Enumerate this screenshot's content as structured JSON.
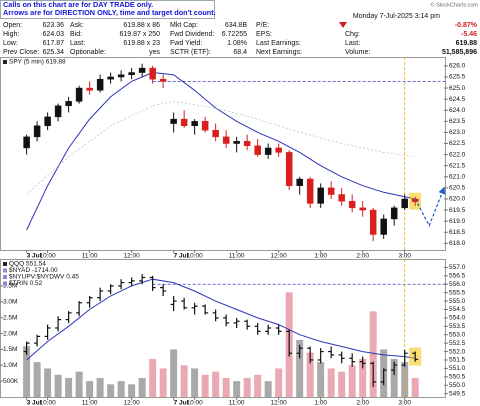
{
  "annotation": [
    "Calls on this chart are for DAY TRADE only.",
    "Arrows are for DIRECTION ONLY, time and target don't count."
  ],
  "quote": {
    "timestamp": "Monday 7-Jul-2025 3:14 pm",
    "credit": "© StockCharts.com",
    "change_pct": "-0.87%",
    "columns": [
      [
        [
          "Open:",
          623.36
        ],
        [
          "High:",
          624.03
        ],
        [
          "Low:",
          617.87
        ],
        [
          "Prev Close:",
          625.34
        ]
      ],
      [
        [
          "Ask:",
          "619.88 x 86"
        ],
        [
          "Bid:",
          "619.87 x 250"
        ],
        [
          "Last:",
          "619.88 x 23"
        ],
        [
          "Optionable:",
          "yes"
        ]
      ],
      [
        [
          "Mkt Cap:",
          "634.8B"
        ],
        [
          "Fwd Dividend:",
          6.72255
        ],
        [
          "Fwd Yield:",
          "1.08%"
        ],
        [
          "SCTR (ETF):",
          68.4
        ]
      ],
      [
        [
          "P/E:"
        ],
        [
          "EPS:"
        ],
        [
          "Last Earnings:"
        ],
        [
          "Next Earnings:"
        ]
      ],
      [
        [
          "Chg:",
          -5.46
        ],
        [
          "Last:",
          619.88
        ],
        [
          "Volume:",
          "51,585,896"
        ]
      ]
    ]
  },
  "chart_data": [
    {
      "type": "candlestick",
      "legend": "SPY (5 min) 619.88",
      "x": [
        0,
        15,
        30,
        45,
        60,
        75,
        90,
        105,
        120,
        135,
        150,
        165,
        180,
        195,
        210,
        225,
        240,
        255,
        270,
        285,
        300,
        315,
        330,
        345,
        360,
        375,
        390,
        405,
        420,
        435,
        450,
        465,
        480,
        495,
        510,
        525,
        540,
        555
      ],
      "open": [
        622.3,
        622.8,
        623.3,
        623.7,
        624.2,
        624.4,
        625.0,
        624.9,
        625.4,
        625.5,
        625.6,
        625.7,
        625.9,
        625.4,
        623.4,
        623.6,
        623.3,
        623.5,
        623.1,
        622.8,
        622.5,
        622.6,
        622.4,
        622.0,
        622.3,
        622.1,
        620.6,
        620.9,
        619.8,
        620.5,
        620.2,
        619.9,
        619.6,
        619.5,
        618.4,
        619.1,
        619.6,
        620.0
      ],
      "high": [
        622.9,
        623.5,
        623.9,
        624.3,
        624.6,
        625.1,
        625.3,
        625.6,
        625.7,
        625.8,
        625.9,
        626.1,
        626.0,
        625.6,
        623.9,
        624.0,
        623.6,
        623.7,
        623.4,
        623.1,
        622.8,
        622.9,
        622.7,
        622.5,
        622.5,
        622.2,
        621.0,
        621.0,
        620.7,
        620.8,
        620.5,
        620.2,
        619.9,
        619.6,
        619.3,
        619.7,
        620.2,
        620.1
      ],
      "low": [
        622.0,
        622.6,
        623.1,
        623.5,
        623.9,
        624.3,
        624.7,
        624.8,
        625.2,
        625.3,
        625.4,
        625.5,
        625.2,
        625.0,
        623.0,
        623.2,
        622.9,
        623.0,
        622.6,
        622.3,
        622.1,
        622.2,
        621.9,
        621.8,
        621.9,
        620.4,
        620.2,
        619.6,
        619.6,
        620.0,
        619.7,
        619.4,
        619.2,
        618.1,
        618.2,
        618.8,
        619.5,
        619.7
      ],
      "close": [
        622.8,
        623.3,
        623.7,
        624.2,
        624.4,
        625.0,
        624.9,
        625.4,
        625.5,
        625.6,
        625.7,
        625.9,
        625.4,
        625.3,
        623.6,
        623.3,
        623.5,
        623.1,
        622.8,
        622.5,
        622.6,
        622.4,
        622.0,
        622.3,
        622.1,
        620.6,
        620.9,
        619.8,
        620.5,
        620.2,
        619.9,
        619.6,
        619.5,
        618.4,
        619.1,
        619.6,
        620.0,
        619.88
      ],
      "up_color": "#111111",
      "down_color": "#d81e1e",
      "highlight_color": "#f2c200",
      "xlim": [
        -38,
        599
      ],
      "xticks": [
        {
          "value": 0,
          "label": "3 Jul"
        },
        {
          "value": 30,
          "label": "10:00"
        },
        {
          "value": 90,
          "label": "11:00"
        },
        {
          "value": 150,
          "label": "12:00"
        },
        {
          "value": 210,
          "label": "7 Jul"
        },
        {
          "value": 240,
          "label": "10:00"
        },
        {
          "value": 300,
          "label": "11:00"
        },
        {
          "value": 360,
          "label": "12:00"
        },
        {
          "value": 420,
          "label": "1:00"
        },
        {
          "value": 480,
          "label": "2:00"
        },
        {
          "value": 540,
          "label": "3:00"
        }
      ],
      "ylim": [
        617.7,
        626.4
      ],
      "yticks": [
        {
          "value": 626,
          "label": "626.0"
        },
        625.5,
        {
          "value": 625,
          "label": "625.0"
        },
        624.5,
        {
          "value": 624,
          "label": "624.0"
        },
        623.5,
        {
          "value": 623,
          "label": "623.0"
        },
        622.5,
        {
          "value": 622,
          "label": "622.0"
        },
        621.5,
        {
          "value": 621,
          "label": "621.0"
        },
        620.5,
        {
          "value": 620,
          "label": "620.0"
        },
        619.5,
        {
          "value": 619,
          "label": "619.0"
        },
        618.5,
        {
          "value": 618,
          "label": "618.0"
        }
      ],
      "overlays": [
        {
          "color": "#2a35b8",
          "dash": false,
          "x": [
            0,
            30,
            60,
            90,
            120,
            150,
            180,
            210,
            240,
            270,
            300,
            330,
            360,
            390,
            420,
            450,
            480,
            510,
            540,
            555
          ],
          "values": [
            618.6,
            620.6,
            622.3,
            623.6,
            624.6,
            625.3,
            625.7,
            625.6,
            624.9,
            624.1,
            623.5,
            623.0,
            622.6,
            622.1,
            621.5,
            621.0,
            620.6,
            620.3,
            620.1,
            620.0
          ]
        },
        {
          "color": "#c4c4c4",
          "dash": true,
          "x": [
            0,
            60,
            120,
            180,
            210,
            270,
            330,
            390,
            450,
            510,
            555
          ],
          "values": [
            620.2,
            621.9,
            623.3,
            624.2,
            624.4,
            624.1,
            623.6,
            623.0,
            622.5,
            622.1,
            621.9
          ]
        }
      ],
      "hlines": [
        {
          "value": 625.3,
          "color": "#3a3acc"
        }
      ],
      "vlines": [
        {
          "value": 540,
          "color": "#f0a500"
        }
      ],
      "projection": {
        "x": [
          555,
          575,
          595
        ],
        "values": [
          620.0,
          618.8,
          620.4
        ],
        "color": "#1a5fd0"
      }
    },
    {
      "type": "ohlc",
      "legend": [
        "QQQ 551.54",
        "$NYAD -1714.00",
        "$NYUPV:$NYDWV 0.45",
        "$TRIN 0.52"
      ],
      "x": [
        0,
        15,
        30,
        45,
        60,
        75,
        90,
        105,
        120,
        135,
        150,
        165,
        180,
        195,
        210,
        225,
        240,
        255,
        270,
        285,
        300,
        315,
        330,
        345,
        360,
        375,
        390,
        405,
        420,
        435,
        450,
        465,
        480,
        495,
        510,
        525,
        540,
        555
      ],
      "open": [
        552.0,
        552.5,
        552.9,
        553.4,
        553.9,
        554.3,
        554.9,
        555.2,
        555.6,
        555.9,
        556.1,
        556.2,
        556.4,
        555.8,
        554.8,
        555.0,
        554.6,
        554.7,
        554.3,
        554.0,
        553.7,
        553.8,
        553.5,
        553.2,
        553.4,
        553.2,
        551.9,
        552.2,
        551.5,
        552.0,
        551.8,
        551.6,
        551.4,
        551.3,
        550.2,
        550.9,
        551.2,
        551.9
      ],
      "high": [
        552.6,
        553.0,
        553.6,
        554.1,
        554.4,
        555.0,
        555.3,
        555.8,
        556.0,
        556.3,
        556.4,
        556.6,
        556.5,
        556.0,
        555.3,
        555.2,
        554.9,
        554.8,
        554.5,
        554.2,
        554.0,
        553.9,
        553.7,
        553.6,
        553.6,
        553.3,
        552.4,
        552.3,
        552.2,
        552.3,
        552.0,
        551.9,
        551.7,
        551.4,
        551.0,
        551.4,
        552.1,
        552.0
      ],
      "low": [
        551.8,
        552.3,
        552.7,
        553.2,
        553.7,
        554.1,
        554.6,
        555.0,
        555.4,
        555.7,
        555.9,
        556.0,
        555.6,
        555.3,
        554.4,
        554.5,
        554.2,
        554.2,
        553.8,
        553.5,
        553.4,
        553.3,
        553.0,
        553.0,
        553.0,
        551.7,
        551.6,
        551.3,
        551.3,
        551.6,
        551.3,
        551.1,
        551.0,
        549.9,
        550.0,
        550.6,
        551.1,
        551.4
      ],
      "close": [
        552.5,
        552.9,
        553.4,
        553.9,
        554.3,
        554.9,
        555.2,
        555.6,
        555.9,
        556.1,
        556.2,
        556.4,
        555.8,
        555.6,
        555.0,
        554.6,
        554.7,
        554.3,
        554.0,
        553.7,
        553.8,
        553.5,
        553.2,
        553.4,
        553.2,
        551.9,
        552.2,
        551.5,
        552.0,
        551.8,
        551.6,
        551.4,
        551.3,
        550.2,
        550.9,
        551.2,
        551.9,
        551.54
      ],
      "color": "#111111",
      "highlight_color": "#f2c200",
      "xlim": [
        -38,
        599
      ],
      "xticks": [
        {
          "value": 0,
          "label": "3 Jul"
        },
        {
          "value": 30,
          "label": "10:00"
        },
        {
          "value": 90,
          "label": "11:00"
        },
        {
          "value": 150,
          "label": "12:00"
        },
        {
          "value": 210,
          "label": "7 Jul"
        },
        {
          "value": 240,
          "label": "10:00"
        },
        {
          "value": 300,
          "label": "11:00"
        },
        {
          "value": 360,
          "label": "12:00"
        },
        {
          "value": 420,
          "label": "1:00"
        },
        {
          "value": 480,
          "label": "2:00"
        },
        {
          "value": 540,
          "label": "3:00"
        }
      ],
      "ylim": [
        549.3,
        557.5
      ],
      "yticks": [
        {
          "value": 557,
          "label": "557.0"
        },
        556.5,
        {
          "value": 556,
          "label": "556.0"
        },
        555.5,
        {
          "value": 555,
          "label": "555.0"
        },
        554.5,
        {
          "value": 554,
          "label": "554.0"
        },
        553.5,
        {
          "value": 553,
          "label": "553.0"
        },
        552.5,
        {
          "value": 552,
          "label": "552.0"
        },
        551.5,
        {
          "value": 551,
          "label": "551.0"
        },
        550.5,
        {
          "value": 550,
          "label": "550.0"
        },
        549.5
      ],
      "overlays": [
        {
          "color": "#2a35b8",
          "dash": false,
          "x": [
            0,
            30,
            60,
            90,
            120,
            150,
            180,
            210,
            240,
            270,
            300,
            330,
            360,
            390,
            420,
            450,
            480,
            510,
            540,
            555
          ],
          "values": [
            551.5,
            552.6,
            553.5,
            554.5,
            555.3,
            555.9,
            556.3,
            556.1,
            555.6,
            555.0,
            554.5,
            554.0,
            553.6,
            553.0,
            552.6,
            552.3,
            552.0,
            551.8,
            551.7,
            551.6
          ]
        }
      ],
      "hlines": [
        {
          "value": 556.0,
          "color": "#3a3acc"
        }
      ],
      "vlines": [
        {
          "value": 540,
          "color": "#f0a500"
        }
      ],
      "volume": {
        "values": [
          1600000,
          1100000,
          900000,
          700000,
          600000,
          800000,
          500000,
          600000,
          400000,
          500000,
          400000,
          600000,
          1200000,
          900000,
          1500000,
          1000000,
          900000,
          700000,
          800000,
          600000,
          500000,
          600000,
          700000,
          500000,
          900000,
          3300000,
          1800000,
          1400000,
          1100000,
          900000,
          800000,
          1000000,
          1200000,
          2700000,
          1500000,
          1200000,
          1100000,
          600000
        ],
        "up_color": "#a9a9a9",
        "down_color": "#e9a8b2",
        "ylim": [
          0,
          4350000
        ],
        "yticks": [
          {
            "value": 3500000,
            "label": "3.5M"
          },
          {
            "value": 3000000,
            "label": "3.0M"
          },
          {
            "value": 2500000,
            "label": "2.5M"
          },
          {
            "value": 2000000,
            "label": "2.0M"
          },
          {
            "value": 1500000,
            "label": "1.5M"
          },
          {
            "value": 1000000,
            "label": "1.0M"
          },
          {
            "value": 500000,
            "label": "500K"
          }
        ]
      }
    }
  ]
}
